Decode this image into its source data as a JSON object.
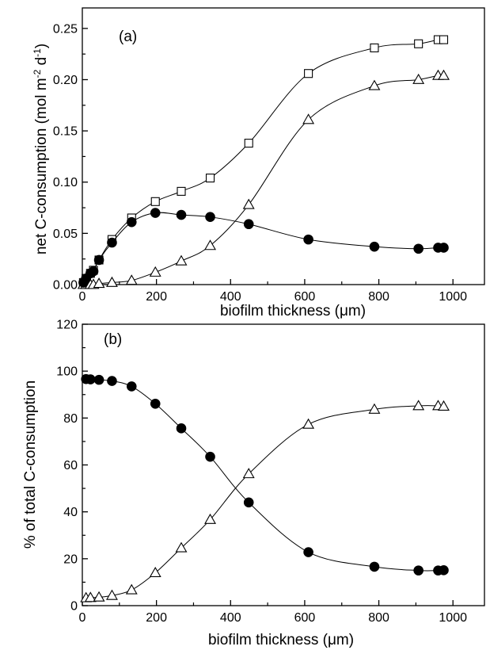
{
  "chart_data": [
    {
      "type": "scatter",
      "panel_label": "(a)",
      "xlabel": "biofilm thickness (μm)",
      "ylabel": "net C-consumption (mol m-2 d-1)",
      "ylabel_parts": {
        "main": "net C-consumption (mol m",
        "exp1": "-2",
        "mid": " d",
        "exp2": "-1",
        "end": ")"
      },
      "xlim": [
        0,
        1085
      ],
      "ylim": [
        0,
        0.27
      ],
      "x_ticks": [
        0,
        200,
        400,
        600,
        800,
        1000
      ],
      "x_tick_labels": [
        "0",
        "200",
        "400",
        "600",
        "800",
        "1000"
      ],
      "y_ticks": [
        0,
        0.05,
        0.1,
        0.15,
        0.2,
        0.25
      ],
      "y_tick_labels": [
        "0.00",
        "0.05",
        "0.10",
        "0.15",
        "0.20",
        "0.25"
      ],
      "grid": false,
      "series": [
        {
          "marker": "square-open",
          "x": [
            3,
            10,
            22,
            30,
            45,
            80,
            133,
            197,
            267,
            345,
            449,
            610,
            788,
            907,
            960,
            975
          ],
          "y": [
            0.002,
            0.006,
            0.011,
            0.014,
            0.024,
            0.044,
            0.065,
            0.081,
            0.091,
            0.104,
            0.138,
            0.206,
            0.231,
            0.235,
            0.239,
            0.239
          ]
        },
        {
          "marker": "triangle-open",
          "x": [
            3,
            10,
            22,
            30,
            45,
            80,
            133,
            197,
            267,
            345,
            449,
            610,
            788,
            907,
            960,
            975
          ],
          "y": [
            0.0,
            0.0,
            0.0,
            0.0,
            0.001,
            0.002,
            0.004,
            0.012,
            0.023,
            0.038,
            0.078,
            0.161,
            0.194,
            0.2,
            0.204,
            0.204
          ]
        },
        {
          "marker": "circle-filled",
          "x": [
            3,
            10,
            22,
            30,
            45,
            80,
            133,
            197,
            267,
            345,
            449,
            610,
            788,
            907,
            960,
            975
          ],
          "y": [
            0.002,
            0.006,
            0.011,
            0.013,
            0.024,
            0.041,
            0.061,
            0.07,
            0.068,
            0.066,
            0.059,
            0.044,
            0.037,
            0.035,
            0.036,
            0.036
          ]
        }
      ]
    },
    {
      "type": "scatter",
      "panel_label": "(b)",
      "xlabel": "biofilm thickness (μm)",
      "ylabel": "% of total C-consumption",
      "xlim": [
        0,
        1085
      ],
      "ylim": [
        0,
        120
      ],
      "x_ticks": [
        0,
        200,
        400,
        600,
        800,
        1000
      ],
      "x_tick_labels": [
        "0",
        "200",
        "400",
        "600",
        "800",
        "1000"
      ],
      "y_ticks": [
        0,
        20,
        40,
        60,
        80,
        100,
        120
      ],
      "y_tick_labels": [
        "0",
        "20",
        "40",
        "60",
        "80",
        "100",
        "120"
      ],
      "grid": false,
      "series": [
        {
          "marker": "circle-filled",
          "x": [
            10,
            22,
            45,
            80,
            133,
            197,
            267,
            345,
            449,
            610,
            788,
            907,
            960,
            975
          ],
          "y": [
            96.6,
            96.5,
            96.3,
            95.8,
            93.5,
            86.1,
            75.6,
            63.5,
            44.0,
            22.8,
            16.6,
            15.0,
            15.0,
            15.1
          ]
        },
        {
          "marker": "triangle-open",
          "x": [
            10,
            22,
            45,
            80,
            133,
            197,
            267,
            345,
            449,
            610,
            788,
            907,
            960,
            975
          ],
          "y": [
            3.3,
            3.4,
            3.6,
            4.3,
            6.7,
            14.0,
            24.6,
            36.7,
            56.2,
            77.3,
            83.7,
            85.2,
            85.2,
            85.0
          ]
        }
      ]
    }
  ]
}
